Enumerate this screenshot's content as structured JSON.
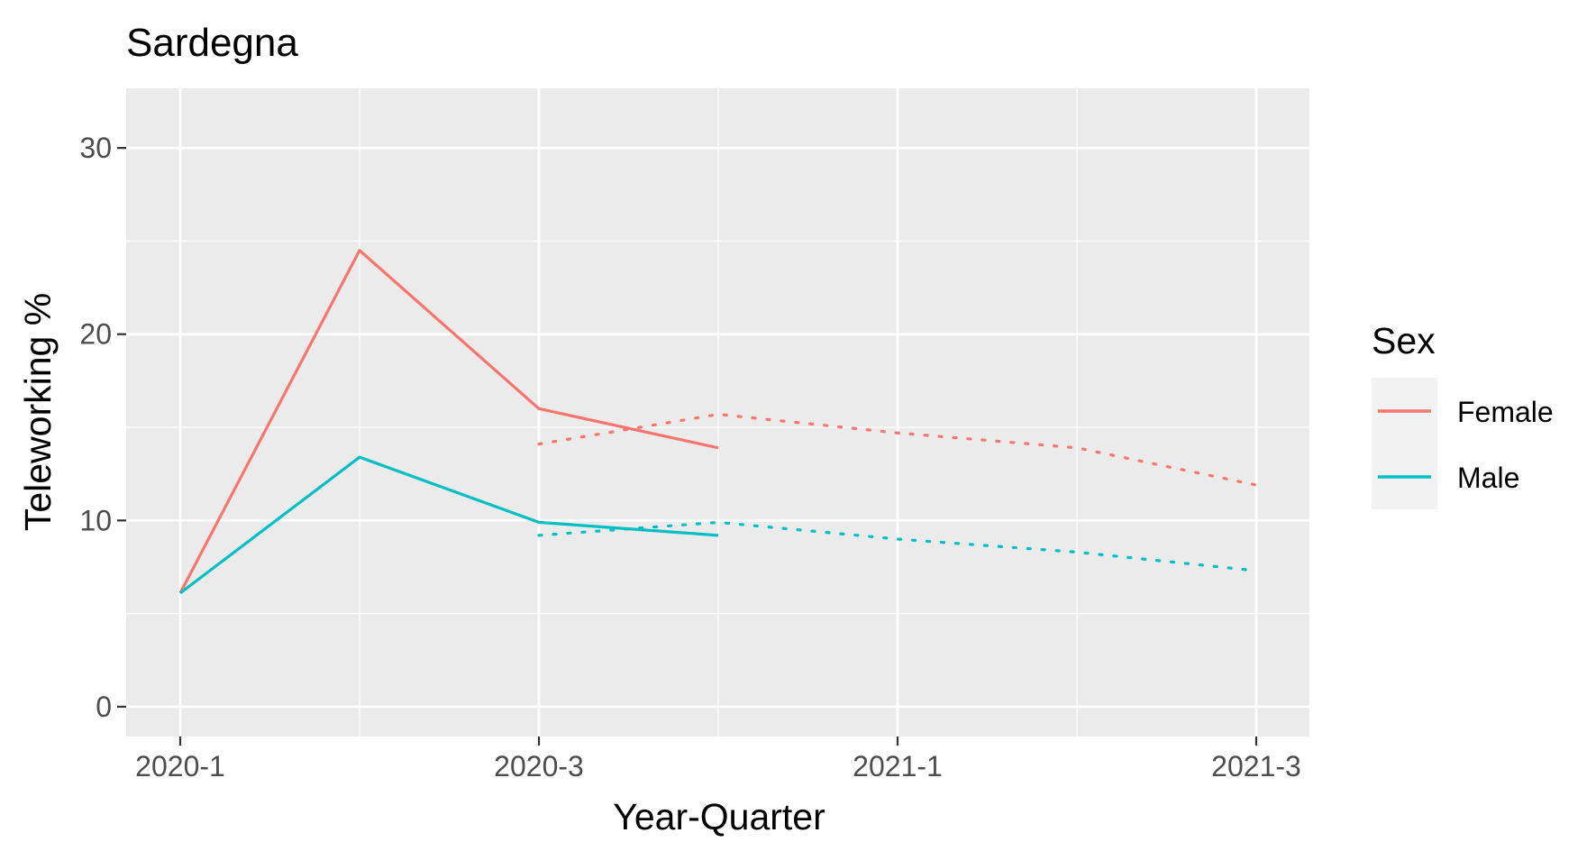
{
  "chart_data": {
    "type": "line",
    "title": "Sardegna",
    "xlabel": "Year-Quarter",
    "ylabel": "Teleworking %",
    "categories": [
      "2020-1",
      "2020-2",
      "2020-3",
      "2020-4",
      "2021-1",
      "2021-2",
      "2021-3"
    ],
    "x_tick_labels": [
      "2020-1",
      "2020-3",
      "2021-1",
      "2021-3"
    ],
    "y_ticks": [
      0,
      10,
      20,
      30
    ],
    "ylim": [
      -1.6,
      33.2
    ],
    "grid": true,
    "legend": {
      "title": "Sex",
      "placement": "right"
    },
    "series": [
      {
        "name": "Female",
        "style": "solid",
        "color": "#F8766D",
        "x": [
          "2020-1",
          "2020-2",
          "2020-3",
          "2020-4"
        ],
        "values": [
          6.1,
          24.5,
          16.0,
          13.9
        ]
      },
      {
        "name": "Male",
        "style": "solid",
        "color": "#00BFC4",
        "x": [
          "2020-1",
          "2020-2",
          "2020-3",
          "2020-4"
        ],
        "values": [
          6.1,
          13.4,
          9.9,
          9.2
        ]
      },
      {
        "name": "Female",
        "style": "dotted",
        "color": "#F8766D",
        "x": [
          "2020-3",
          "2020-4",
          "2021-1",
          "2021-2",
          "2021-3"
        ],
        "values": [
          14.1,
          15.7,
          14.7,
          13.9,
          11.9
        ]
      },
      {
        "name": "Male",
        "style": "dotted",
        "color": "#00BFC4",
        "x": [
          "2020-3",
          "2020-4",
          "2021-1",
          "2021-2",
          "2021-3"
        ],
        "values": [
          9.2,
          9.9,
          9.0,
          8.3,
          7.3
        ]
      }
    ]
  }
}
